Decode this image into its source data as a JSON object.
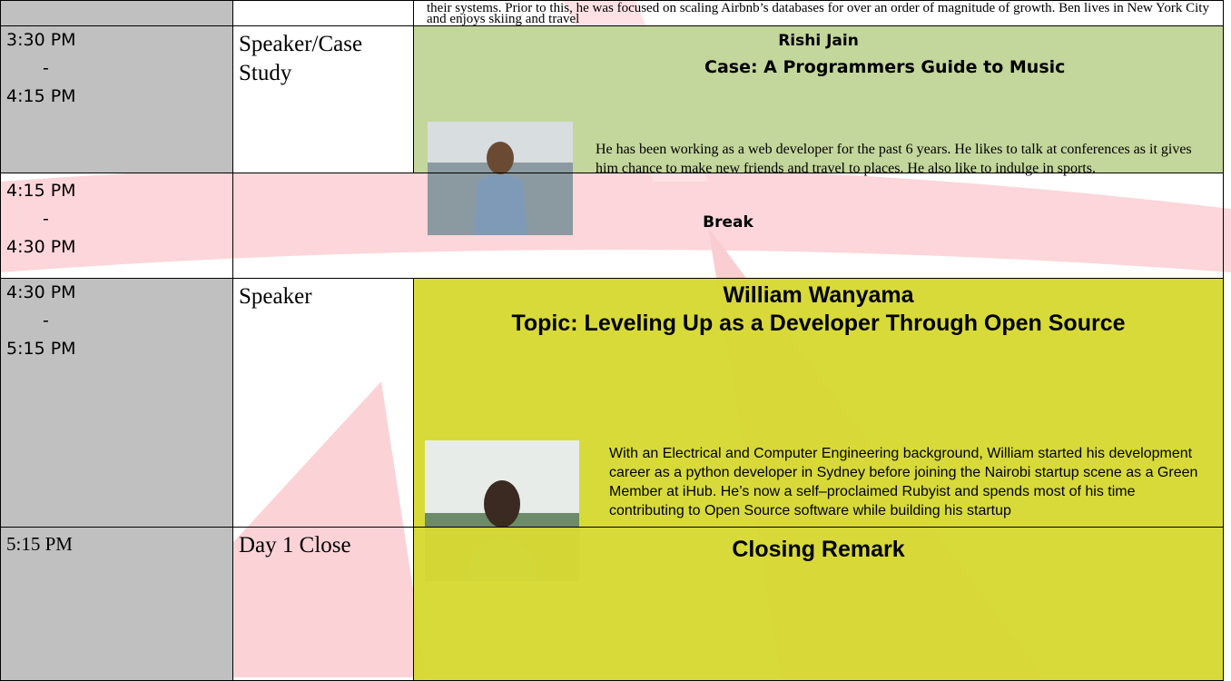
{
  "rows": [
    {
      "time": [],
      "type": "",
      "text": "their systems. Prior to this, he was focused on scaling Airbnb’s databases for over an order of magnitude of growth. Ben lives in New York City and enjoys skiing and travel"
    },
    {
      "time": [
        "3:30 PM",
        "-",
        "4:15 PM"
      ],
      "type": "Speaker/Case Study",
      "name": "Rishi Jain",
      "topic": "Case: A Programmers Guide to Music",
      "bio": "He has been working as a web developer for the past 6 years. He likes to talk at conferences as it gives him chance to make new friends and travel to places. He also like to indulge in sports."
    },
    {
      "time": [
        "4:15 PM",
        "-",
        "4:30 PM"
      ],
      "title": "Break"
    },
    {
      "time": [
        "4:30 PM",
        "-",
        "5:15 PM"
      ],
      "type": "Speaker",
      "name": "William Wanyama",
      "topic": "Topic: Leveling Up as a Developer Through Open Source",
      "bio": "With an Electrical and Computer Engineering background, William started his development career as a python developer in Sydney before joining the Nairobi startup scene as a Green Member at iHub. He’s now a self–proclaimed Rubyist and spends most of his time contributing to Open Source software while building his startup"
    },
    {
      "time": [
        "5:15 PM"
      ],
      "type": "Day 1 Close",
      "title": "Closing Remark"
    }
  ]
}
